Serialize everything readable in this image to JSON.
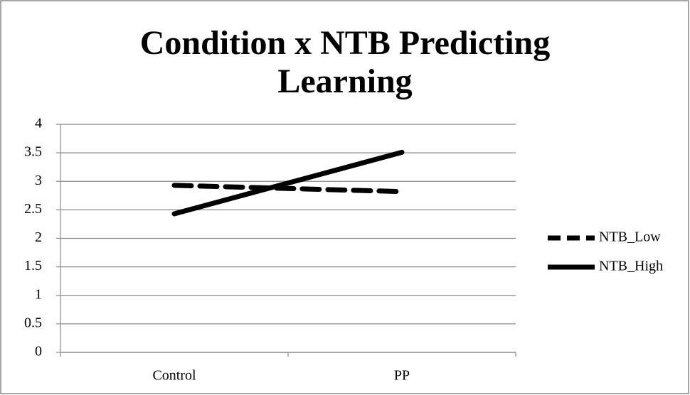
{
  "chart_data": {
    "type": "line",
    "title": "Condition x NTB Predicting Learning",
    "categories": [
      "Control",
      "PP"
    ],
    "series": [
      {
        "name": "NTB_Low",
        "color": "#000000",
        "style": "dashed",
        "values": [
          2.93,
          2.82
        ]
      },
      {
        "name": "NTB_High",
        "color": "#000000",
        "style": "solid",
        "values": [
          2.43,
          3.51
        ]
      }
    ],
    "ylim": [
      0,
      4
    ],
    "yticks": [
      0,
      0.5,
      1,
      1.5,
      2,
      2.5,
      3,
      3.5,
      4
    ],
    "grid": true,
    "legend": "right"
  }
}
